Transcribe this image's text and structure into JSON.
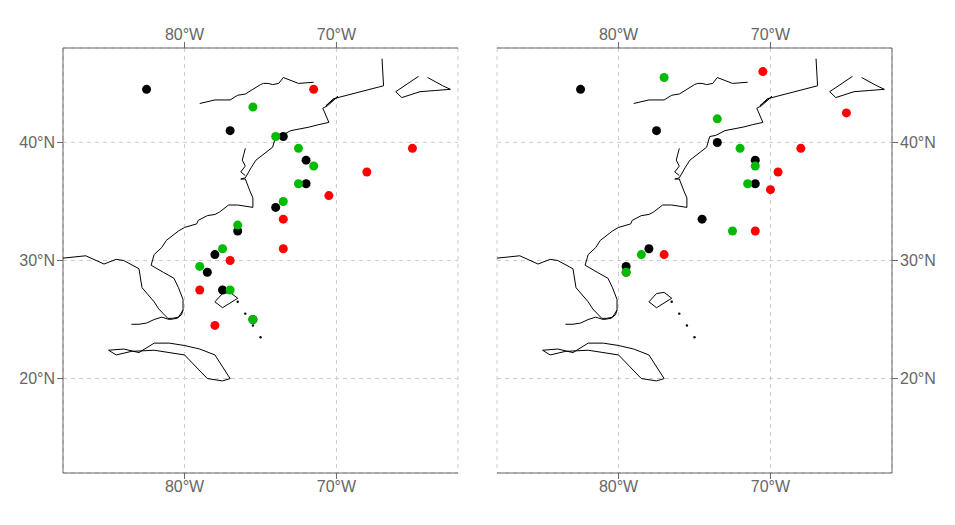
{
  "chart_data": [
    {
      "type": "scatter",
      "xlim": [
        -88,
        -62
      ],
      "ylim": [
        12,
        48
      ],
      "xticks": [
        {
          "value": -80,
          "label": "80°W"
        },
        {
          "value": -70,
          "label": "70°W"
        }
      ],
      "yticks": [
        {
          "value": 20,
          "label": "20°N"
        },
        {
          "value": 30,
          "label": "30°N"
        },
        {
          "value": 40,
          "label": "40°N"
        }
      ],
      "grid": true,
      "series": [
        {
          "type": "line",
          "color": "#000000",
          "line_style": "solid",
          "x": [
            -67.0,
            -66.9,
            -70.2,
            -70.7,
            -69.9,
            -70.6,
            -70.9,
            -70.5,
            -71.2,
            -71.8,
            -73.0,
            -73.6,
            -74.0,
            -74.2,
            -74.9,
            -75.3,
            -75.6,
            -76.0,
            -76.3,
            -76.0,
            -75.7,
            -75.5,
            -75.5,
            -76.5,
            -77.1,
            -77.7,
            -78.0,
            -78.5,
            -79.1,
            -79.2,
            -80.0,
            -80.4,
            -81.2,
            -81.5,
            -82.0,
            -82.2,
            -81.4,
            -80.7,
            -80.4,
            -80.1,
            -80.1,
            -80.4,
            -80.8,
            -81.1,
            -81.4,
            -81.7,
            -82.0,
            -82.8,
            -83.0,
            -84.0,
            -84.5,
            -85.3,
            -86.5,
            -88.0
          ],
          "values": [
            47.1,
            44.8,
            43.7,
            43.1,
            43.9,
            43.1,
            42.9,
            41.7,
            41.5,
            41.3,
            41.0,
            40.6,
            40.5,
            39.6,
            38.9,
            38.5,
            37.9,
            37.0,
            36.9,
            36.9,
            35.9,
            35.3,
            34.5,
            34.7,
            34.7,
            34.1,
            33.9,
            33.8,
            33.4,
            33.1,
            32.8,
            32.5,
            31.7,
            31.1,
            30.5,
            29.6,
            29.0,
            28.5,
            27.7,
            26.7,
            25.8,
            25.2,
            25.1,
            25.1,
            25.5,
            25.9,
            26.5,
            27.7,
            29.3,
            30.0,
            30.1,
            29.7,
            30.4,
            30.2
          ]
        },
        {
          "type": "line",
          "color": "#000000",
          "line_style": "solid",
          "x": [
            -80.1,
            -80.2,
            -80.5,
            -81.0,
            -81.5,
            -82.0,
            -82.5,
            -83.0,
            -83.5
          ],
          "values": [
            25.8,
            25.4,
            25.1,
            25.0,
            25.2,
            25.0,
            24.7,
            24.6,
            24.6
          ]
        },
        {
          "type": "line",
          "color": "#000000",
          "line_style": "solid",
          "x": [
            -79.0,
            -78.0,
            -77.0,
            -76.5,
            -76.0,
            -75.5,
            -75.0,
            -74.8,
            -74.5,
            -74.2,
            -73.8,
            -73.5,
            -72.5,
            -71.5
          ],
          "values": [
            43.3,
            43.6,
            43.6,
            44.0,
            44.1,
            44.5,
            44.9,
            45.0,
            45.0,
            44.9,
            45.0,
            45.5,
            45.0,
            45.1
          ]
        },
        {
          "type": "line",
          "color": "#000000",
          "line_style": "solid",
          "x": [
            -64.0,
            -63.0,
            -62.5,
            -63.5,
            -64.5,
            -65.7,
            -66.1,
            -64.6
          ],
          "values": [
            45.5,
            44.8,
            44.5,
            44.4,
            44.3,
            43.8,
            44.3,
            45.6
          ]
        },
        {
          "type": "line",
          "color": "#000000",
          "line_style": "solid",
          "x": [
            -85.0,
            -84.0,
            -83.0,
            -82.0,
            -81.0,
            -80.0,
            -79.0,
            -78.0,
            -77.0,
            -77.5,
            -78.5,
            -80.0,
            -82.0,
            -83.5,
            -84.5,
            -85.0
          ],
          "values": [
            22.4,
            22.5,
            22.2,
            23.0,
            23.0,
            22.8,
            22.5,
            22.0,
            20.0,
            19.8,
            20.0,
            22.0,
            22.4,
            22.3,
            22.0,
            22.4
          ]
        },
        {
          "type": "line",
          "color": "#000000",
          "line_style": "solid",
          "x": [
            -77.0,
            -76.5,
            -77.5,
            -78.0,
            -77.5,
            -77.0
          ],
          "values": [
            27.3,
            26.8,
            26.0,
            26.5,
            27.2,
            27.3
          ]
        },
        {
          "type": "line",
          "color": "#000000",
          "line_style": "solid",
          "x": [
            -76.0,
            -76.1,
            -76.2,
            -76.0,
            -76.3,
            -76.0
          ],
          "values": [
            39.5,
            39.0,
            38.5,
            38.0,
            37.5,
            37.2
          ]
        },
        {
          "type": "scatter",
          "color": "#000000",
          "marker": "dot",
          "x": [
            -76.5,
            -76.0,
            -75.5,
            -75.0
          ],
          "values": [
            26.5,
            25.5,
            24.5,
            23.5
          ]
        },
        {
          "type": "scatter",
          "color": "#000000",
          "marker": "circle",
          "x": [
            -82.5,
            -77.0,
            -73.5,
            -72.0,
            -72.0,
            -74.0,
            -76.5,
            -78.0,
            -78.5,
            -77.5,
            -75.5
          ],
          "values": [
            44.5,
            41.0,
            40.5,
            38.5,
            36.5,
            34.5,
            32.5,
            30.5,
            29.0,
            27.5,
            25.0
          ]
        },
        {
          "type": "scatter",
          "color": "#ff0000",
          "marker": "circle",
          "x": [
            -71.5,
            -65.0,
            -68.0,
            -70.5,
            -73.5,
            -73.5,
            -77.0,
            -79.0,
            -78.0
          ],
          "values": [
            44.5,
            39.5,
            37.5,
            35.5,
            33.5,
            31.0,
            30.0,
            27.5,
            24.5
          ]
        },
        {
          "type": "scatter",
          "color": "#00bb00",
          "marker": "circle",
          "x": [
            -75.5,
            -74.0,
            -72.5,
            -71.5,
            -72.5,
            -73.5,
            -76.5,
            -77.5,
            -79.0,
            -77.0,
            -75.5
          ],
          "values": [
            43.0,
            40.5,
            39.5,
            38.0,
            36.5,
            35.0,
            33.0,
            31.0,
            29.5,
            27.5,
            25.0
          ]
        }
      ]
    },
    {
      "type": "scatter",
      "xlim": [
        -88,
        -62
      ],
      "ylim": [
        12,
        48
      ],
      "xticks": [
        {
          "value": -80,
          "label": "80°W"
        },
        {
          "value": -70,
          "label": "70°W"
        }
      ],
      "yticks": [
        {
          "value": 20,
          "label": "20°N"
        },
        {
          "value": 30,
          "label": "30°N"
        },
        {
          "value": 40,
          "label": "40°N"
        }
      ],
      "grid": true,
      "series": [
        {
          "type": "line",
          "color": "#000000",
          "line_style": "solid",
          "x": [
            -67.0,
            -66.9,
            -70.2,
            -70.7,
            -69.9,
            -70.6,
            -70.9,
            -70.5,
            -71.2,
            -71.8,
            -73.0,
            -73.6,
            -74.0,
            -74.2,
            -74.9,
            -75.3,
            -75.6,
            -76.0,
            -76.3,
            -76.0,
            -75.7,
            -75.5,
            -75.5,
            -76.5,
            -77.1,
            -77.7,
            -78.0,
            -78.5,
            -79.1,
            -79.2,
            -80.0,
            -80.4,
            -81.2,
            -81.5,
            -82.0,
            -82.2,
            -81.4,
            -80.7,
            -80.4,
            -80.1,
            -80.1,
            -80.4,
            -80.8,
            -81.1,
            -81.4,
            -81.7,
            -82.0,
            -82.8,
            -83.0,
            -84.0,
            -84.5,
            -85.3,
            -86.5,
            -88.0
          ],
          "values": [
            47.1,
            44.8,
            43.7,
            43.1,
            43.9,
            43.1,
            42.9,
            41.7,
            41.5,
            41.3,
            41.0,
            40.6,
            40.5,
            39.6,
            38.9,
            38.5,
            37.9,
            37.0,
            36.9,
            36.9,
            35.9,
            35.3,
            34.5,
            34.7,
            34.7,
            34.1,
            33.9,
            33.8,
            33.4,
            33.1,
            32.8,
            32.5,
            31.7,
            31.1,
            30.5,
            29.6,
            29.0,
            28.5,
            27.7,
            26.7,
            25.8,
            25.2,
            25.1,
            25.1,
            25.5,
            25.9,
            26.5,
            27.7,
            29.3,
            30.0,
            30.1,
            29.7,
            30.4,
            30.2
          ]
        },
        {
          "type": "line",
          "color": "#000000",
          "line_style": "solid",
          "x": [
            -80.1,
            -80.2,
            -80.5,
            -81.0,
            -81.5,
            -82.0,
            -82.5,
            -83.0,
            -83.5
          ],
          "values": [
            25.8,
            25.4,
            25.1,
            25.0,
            25.2,
            25.0,
            24.7,
            24.6,
            24.6
          ]
        },
        {
          "type": "line",
          "color": "#000000",
          "line_style": "solid",
          "x": [
            -79.0,
            -78.0,
            -77.0,
            -76.5,
            -76.0,
            -75.5,
            -75.0,
            -74.8,
            -74.5,
            -74.2,
            -73.8,
            -73.5,
            -72.5,
            -71.5
          ],
          "values": [
            43.3,
            43.6,
            43.6,
            44.0,
            44.1,
            44.5,
            44.9,
            45.0,
            45.0,
            44.9,
            45.0,
            45.5,
            45.0,
            45.1
          ]
        },
        {
          "type": "line",
          "color": "#000000",
          "line_style": "solid",
          "x": [
            -64.0,
            -63.0,
            -62.5,
            -63.5,
            -64.5,
            -65.7,
            -66.1,
            -64.6
          ],
          "values": [
            45.5,
            44.8,
            44.5,
            44.4,
            44.3,
            43.8,
            44.3,
            45.6
          ]
        },
        {
          "type": "line",
          "color": "#000000",
          "line_style": "solid",
          "x": [
            -85.0,
            -84.0,
            -83.0,
            -82.0,
            -81.0,
            -80.0,
            -79.0,
            -78.0,
            -77.0,
            -77.5,
            -78.5,
            -80.0,
            -82.0,
            -83.5,
            -84.5,
            -85.0
          ],
          "values": [
            22.4,
            22.5,
            22.2,
            23.0,
            23.0,
            22.8,
            22.5,
            22.0,
            20.0,
            19.8,
            20.0,
            22.0,
            22.4,
            22.3,
            22.0,
            22.4
          ]
        },
        {
          "type": "line",
          "color": "#000000",
          "line_style": "solid",
          "x": [
            -77.0,
            -76.5,
            -77.5,
            -78.0,
            -77.5,
            -77.0
          ],
          "values": [
            27.3,
            26.8,
            26.0,
            26.5,
            27.2,
            27.3
          ]
        },
        {
          "type": "line",
          "color": "#000000",
          "line_style": "solid",
          "x": [
            -76.0,
            -76.1,
            -76.2,
            -76.0,
            -76.3,
            -76.0
          ],
          "values": [
            39.5,
            39.0,
            38.5,
            38.0,
            37.5,
            37.2
          ]
        },
        {
          "type": "scatter",
          "color": "#000000",
          "marker": "dot",
          "x": [
            -76.5,
            -76.0,
            -75.5,
            -75.0
          ],
          "values": [
            26.5,
            25.5,
            24.5,
            23.5
          ]
        },
        {
          "type": "scatter",
          "color": "#000000",
          "marker": "circle",
          "x": [
            -82.5,
            -77.5,
            -73.5,
            -71.0,
            -71.0,
            -74.5,
            -78.0,
            -79.5
          ],
          "values": [
            44.5,
            41.0,
            40.0,
            38.5,
            36.5,
            33.5,
            31.0,
            29.5
          ]
        },
        {
          "type": "scatter",
          "color": "#ff0000",
          "marker": "circle",
          "x": [
            -70.5,
            -65.0,
            -68.0,
            -69.5,
            -70.0,
            -71.0,
            -77.0,
            -79.5
          ],
          "values": [
            46.0,
            42.5,
            39.5,
            37.5,
            36.0,
            32.5,
            30.5,
            29.0
          ]
        },
        {
          "type": "scatter",
          "color": "#00bb00",
          "marker": "circle",
          "x": [
            -77.0,
            -73.5,
            -72.0,
            -71.0,
            -71.5,
            -72.5,
            -78.5,
            -79.5
          ],
          "values": [
            45.5,
            42.0,
            39.5,
            38.0,
            36.5,
            32.5,
            30.5,
            29.0
          ]
        }
      ]
    }
  ]
}
